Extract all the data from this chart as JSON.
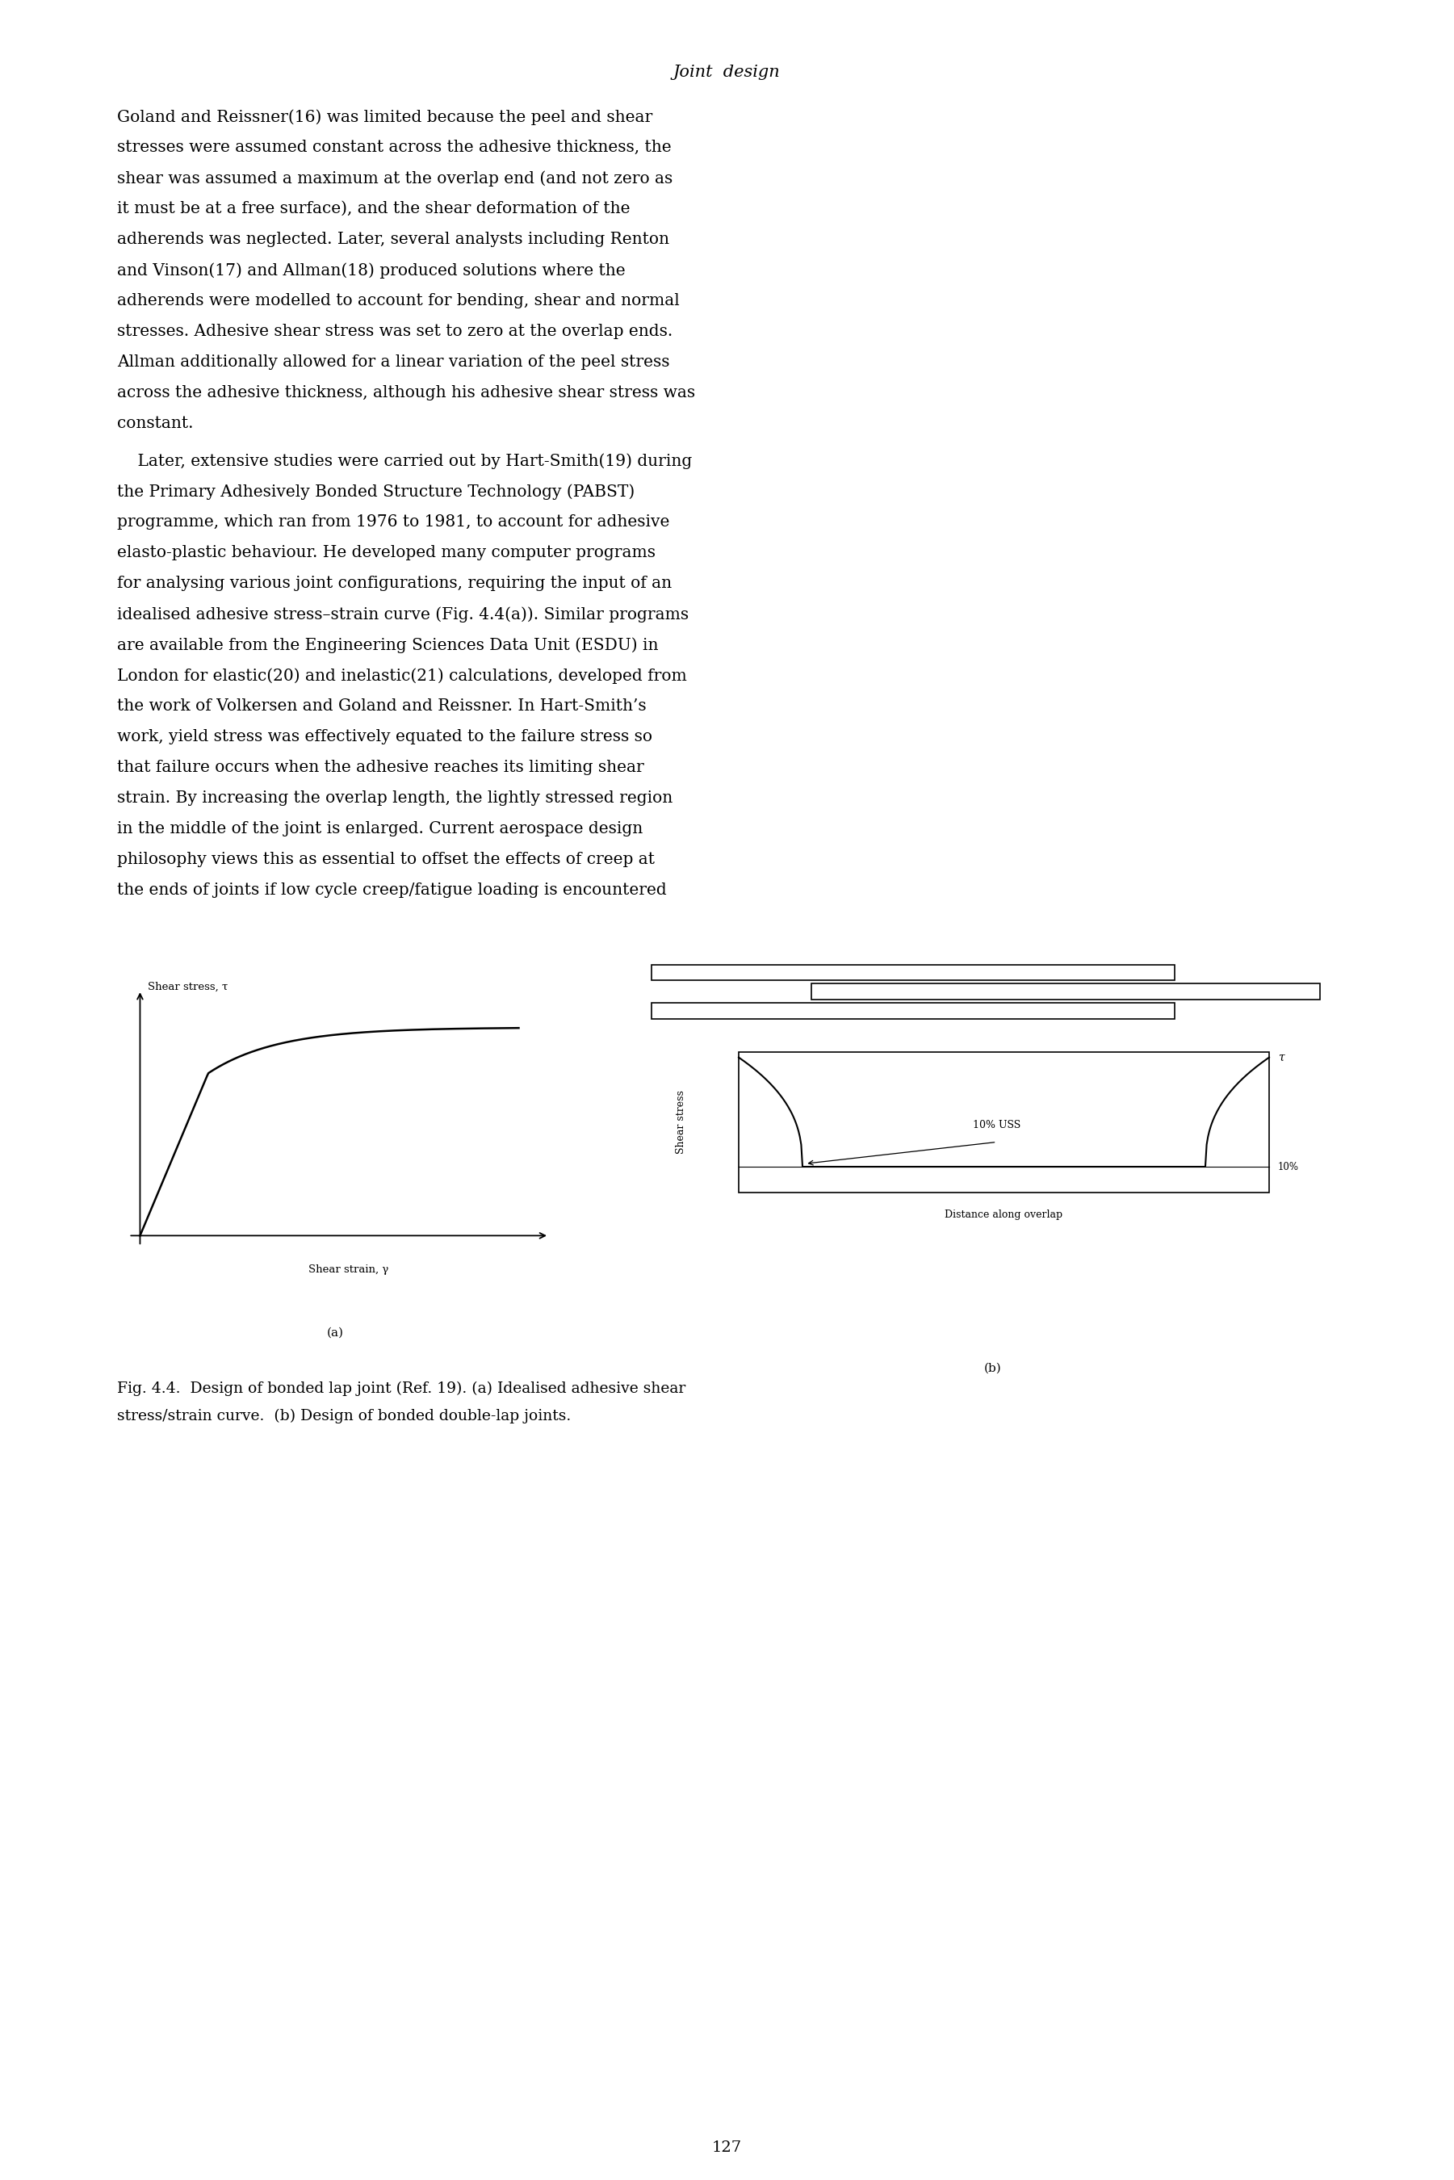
{
  "page_width": 18.01,
  "page_height": 27.0,
  "background_color": "#ffffff",
  "header_title": "Joint  design",
  "para1": "Goland and Reissner(16) was limited because the peel and shear stresses were assumed constant across the adhesive thickness, the shear was assumed a maximum at the overlap end (and not zero as it must be at a free surface), and the shear deformation of the adherends was neglected. Later, several analysts including Renton and Vinson(17) and Allman(18) produced solutions where the adherends were modelled to account for bending, shear and normal stresses. Adhesive shear stress was set to zero at the overlap ends. Allman additionally allowed for a linear variation of the peel stress across the adhesive thickness, although his adhesive shear stress was constant.",
  "para2": "    Later, extensive studies were carried out by Hart-Smith(19) during the Primary Adhesively Bonded Structure Technology (PABST) programme, which ran from 1976 to 1981, to account for adhesive elasto-plastic behaviour. He developed many computer programs for analysing various joint configurations, requiring the input of an idealised adhesive stress–strain curve (Fig. 4.4(a)). Similar programs are available from the Engineering Sciences Data Unit (ESDU) in London for elastic(20) and inelastic(21) calculations, developed from the work of Volkersen and Goland and Reissner. In Hart-Smith’s work, yield stress was effectively equated to the failure stress so that failure occurs when the adhesive reaches its limiting shear strain. By increasing the overlap length, the lightly stressed region in the middle of the joint is enlarged. Current aerospace design philosophy views this as essential to offset the effects of creep at the ends of joints if low cycle creep/fatigue loading is encountered",
  "caption_line1": "Fig. 4.4.  Design of bonded lap joint (Ref. 19). (a) Idealised adhesive shear",
  "caption_line2": "stress/strain curve.  (b) Design of bonded double-lap joints.",
  "page_number": "127",
  "label_a": "(a)",
  "label_b": "(b)",
  "shear_stress_label": "Shear stress, τ",
  "shear_strain_label": "Shear strain, γ",
  "shear_stress_y_label": "Shear stress",
  "distance_label": "Distance along overlap",
  "uss_label": "10% USS",
  "ten_pct_label": "10%",
  "tau_label": "τ"
}
